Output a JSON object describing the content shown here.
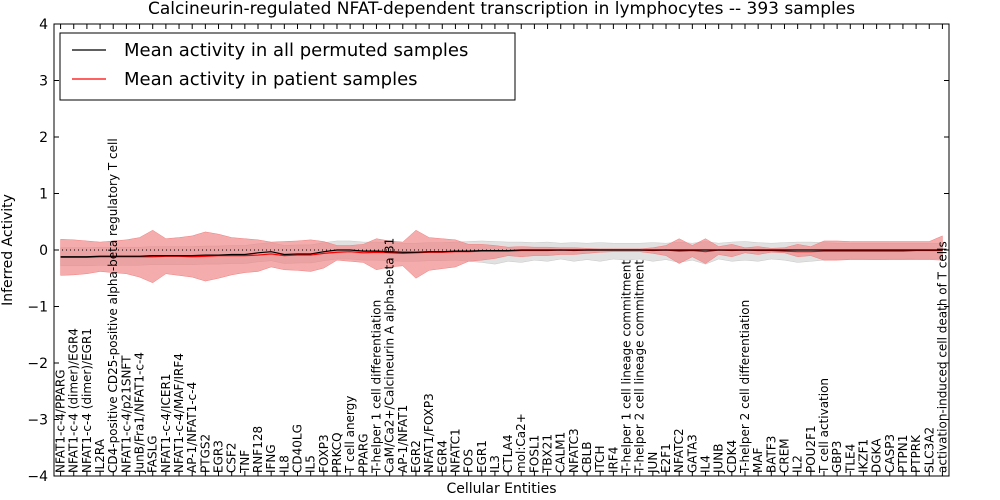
{
  "chart_data": {
    "type": "line",
    "title": "Calcineurin-regulated NFAT-dependent transcription in lymphocytes -- 393 samples",
    "xlabel": "Cellular Entities",
    "ylabel": "Inferred Activity",
    "ylim": [
      -4,
      4
    ],
    "yticks": [
      -4,
      -3,
      -2,
      -1,
      0,
      1,
      2,
      3,
      4
    ],
    "ytick_labels": [
      "−4",
      "−3",
      "−2",
      "−1",
      "0",
      "1",
      "2",
      "3",
      "4"
    ],
    "grid": false,
    "legend_position": "top-left",
    "categories": [
      "NFAT1-c-4/PPARG",
      "NFAT1-c-4 (dimer)/EGR4",
      "NFAT1-c-4 (dimer)/EGR1",
      "IL2RA",
      "CD4-positive CD25-positive alpha-beta regulatory T cell",
      "NFAT1-c-4/p21SNFT",
      "JunB/Fra1/NFAT1-c-4",
      "FASLG",
      "NFAT1-c-4/ICER1",
      "NFAT1-c-4/MAF/IRF4",
      "AP-1/NFAT1-c-4",
      "PTGS2",
      "EGR3",
      "CSF2",
      "TNF",
      "RNF128",
      "IFNG",
      "IL8",
      "CD40LG",
      "IL5",
      "FOXP3",
      "PRKCQ",
      "T cell anergy",
      "PPARG",
      "T-helper 1 cell differentiation",
      "CaM/Ca2+/Calcineurin A alpha-beta B1",
      "AP-1/NFAT1",
      "EGR2",
      "NFAT1/FOXP3",
      "EGR4",
      "NFATC1",
      "FOS",
      "EGR1",
      "IL3",
      "CTLA4",
      "mol:Ca2+",
      "FOSL1",
      "TBX21",
      "CALM1",
      "NFATC3",
      "CBLB",
      "ITCH",
      "IRF4",
      "T-helper 1 cell lineage commitment",
      "T-helper 2 cell lineage commitment",
      "JUN",
      "E2F1",
      "NFATC2",
      "GATA3",
      "IL4",
      "JUNB",
      "CDK4",
      "T-helper 2 cell differentiation",
      "MAF",
      "BATF3",
      "CREM",
      "IL2",
      "POU2F1",
      "T cell activation",
      "GBP3",
      "TLE4",
      "IKZF1",
      "DGKA",
      "CASP3",
      "PTPN1",
      "PTPRK",
      "SLC3A2",
      "activation-induced cell death of T cells"
    ],
    "series": [
      {
        "name": "Mean activity in all permuted samples",
        "color": "#000000",
        "values": [
          -0.12,
          -0.12,
          -0.12,
          -0.11,
          -0.11,
          -0.11,
          -0.11,
          -0.1,
          -0.1,
          -0.1,
          -0.1,
          -0.09,
          -0.09,
          -0.08,
          -0.08,
          -0.05,
          -0.03,
          -0.08,
          -0.07,
          -0.07,
          -0.03,
          0.0,
          0.0,
          -0.02,
          -0.02,
          -0.03,
          -0.04,
          -0.04,
          -0.03,
          -0.03,
          -0.02,
          -0.02,
          -0.01,
          -0.01,
          -0.01,
          0.0,
          0.0,
          0.0,
          0.0,
          0.0,
          0.0,
          0.0,
          0.0,
          0.0,
          0.0,
          0.0,
          0.0,
          0.0,
          0.0,
          0.0,
          0.0,
          0.0,
          0.0,
          0.0,
          0.0,
          0.0,
          0.0,
          0.0,
          0.0,
          0.0,
          0.0,
          0.0,
          0.0,
          0.0,
          0.0,
          0.0,
          0.0,
          0.0
        ],
        "band": {
          "color": "#c8c8c8",
          "lower": [
            -0.28,
            -0.28,
            -0.28,
            -0.27,
            -0.27,
            -0.27,
            -0.27,
            -0.26,
            -0.26,
            -0.26,
            -0.26,
            -0.25,
            -0.25,
            -0.24,
            -0.24,
            -0.21,
            -0.19,
            -0.24,
            -0.23,
            -0.23,
            -0.19,
            -0.16,
            -0.16,
            -0.18,
            -0.18,
            -0.19,
            -0.2,
            -0.2,
            -0.19,
            -0.19,
            -0.18,
            -0.2,
            -0.22,
            -0.25,
            -0.2,
            -0.22,
            -0.18,
            -0.2,
            -0.16,
            -0.2,
            -0.17,
            -0.2,
            -0.16,
            -0.18,
            -0.16,
            -0.2,
            -0.17,
            -0.22,
            -0.18,
            -0.25,
            -0.16,
            -0.2,
            -0.18,
            -0.2,
            -0.16,
            -0.18,
            -0.22,
            -0.2,
            -0.18,
            -0.17,
            -0.16,
            -0.16,
            -0.17,
            -0.16,
            -0.16,
            -0.15,
            -0.15,
            -0.15
          ],
          "upper": [
            0.04,
            0.04,
            0.04,
            0.05,
            0.05,
            0.05,
            0.05,
            0.06,
            0.06,
            0.06,
            0.06,
            0.07,
            0.07,
            0.08,
            0.08,
            0.11,
            0.13,
            0.08,
            0.09,
            0.09,
            0.13,
            0.16,
            0.16,
            0.14,
            0.14,
            0.13,
            0.12,
            0.12,
            0.13,
            0.13,
            0.14,
            0.15,
            0.16,
            0.15,
            0.14,
            0.14,
            0.13,
            0.14,
            0.12,
            0.13,
            0.12,
            0.13,
            0.12,
            0.12,
            0.12,
            0.13,
            0.12,
            0.14,
            0.12,
            0.15,
            0.12,
            0.14,
            0.15,
            0.13,
            0.12,
            0.13,
            0.14,
            0.14,
            0.13,
            0.12,
            0.12,
            0.12,
            0.12,
            0.12,
            0.12,
            0.12,
            0.12,
            0.12
          ]
        }
      },
      {
        "name": "Mean activity in patient samples",
        "color": "#ff0000",
        "values": [
          -0.13,
          -0.13,
          -0.13,
          -0.12,
          -0.12,
          -0.12,
          -0.12,
          -0.12,
          -0.11,
          -0.11,
          -0.12,
          -0.11,
          -0.1,
          -0.1,
          -0.1,
          -0.09,
          -0.07,
          -0.1,
          -0.09,
          -0.09,
          -0.06,
          -0.04,
          -0.03,
          -0.05,
          -0.04,
          -0.05,
          -0.06,
          -0.05,
          -0.04,
          -0.04,
          -0.03,
          -0.03,
          -0.02,
          -0.02,
          -0.02,
          -0.01,
          -0.01,
          -0.01,
          0.0,
          -0.01,
          0.0,
          0.0,
          0.0,
          0.0,
          0.0,
          -0.01,
          0.0,
          -0.02,
          -0.01,
          -0.03,
          0.0,
          -0.01,
          0.0,
          -0.01,
          -0.01,
          -0.02,
          -0.03,
          -0.03,
          -0.02,
          -0.02,
          -0.02,
          -0.02,
          -0.02,
          -0.02,
          -0.02,
          -0.01,
          -0.01,
          -0.01
        ],
        "band": {
          "color": "#f08080",
          "lower": [
            -0.45,
            -0.44,
            -0.42,
            -0.38,
            -0.4,
            -0.42,
            -0.48,
            -0.58,
            -0.42,
            -0.45,
            -0.48,
            -0.55,
            -0.5,
            -0.44,
            -0.4,
            -0.38,
            -0.3,
            -0.35,
            -0.36,
            -0.38,
            -0.32,
            -0.18,
            -0.2,
            -0.22,
            -0.35,
            -0.3,
            -0.28,
            -0.5,
            -0.36,
            -0.33,
            -0.3,
            -0.2,
            -0.18,
            -0.15,
            -0.1,
            -0.12,
            -0.1,
            -0.1,
            -0.08,
            -0.08,
            -0.06,
            -0.04,
            -0.03,
            -0.03,
            -0.03,
            -0.06,
            -0.1,
            -0.24,
            -0.12,
            -0.24,
            -0.08,
            -0.12,
            -0.05,
            -0.08,
            -0.04,
            -0.05,
            -0.12,
            -0.1,
            -0.18,
            -0.18,
            -0.17,
            -0.17,
            -0.17,
            -0.17,
            -0.17,
            -0.17,
            -0.17,
            -0.18
          ],
          "upper": [
            0.19,
            0.18,
            0.16,
            0.14,
            0.16,
            0.18,
            0.22,
            0.35,
            0.2,
            0.22,
            0.25,
            0.32,
            0.28,
            0.22,
            0.2,
            0.18,
            0.14,
            0.15,
            0.16,
            0.18,
            0.15,
            0.08,
            0.08,
            0.1,
            0.2,
            0.16,
            0.14,
            0.35,
            0.22,
            0.2,
            0.18,
            0.1,
            0.1,
            0.08,
            0.05,
            0.06,
            0.05,
            0.05,
            0.04,
            0.04,
            0.03,
            0.02,
            0.02,
            0.02,
            0.02,
            0.04,
            0.08,
            0.2,
            0.08,
            0.2,
            0.06,
            0.1,
            0.04,
            0.06,
            0.03,
            0.04,
            0.1,
            0.06,
            0.16,
            0.16,
            0.15,
            0.15,
            0.15,
            0.15,
            0.15,
            0.15,
            0.15,
            0.25
          ]
        }
      }
    ]
  }
}
